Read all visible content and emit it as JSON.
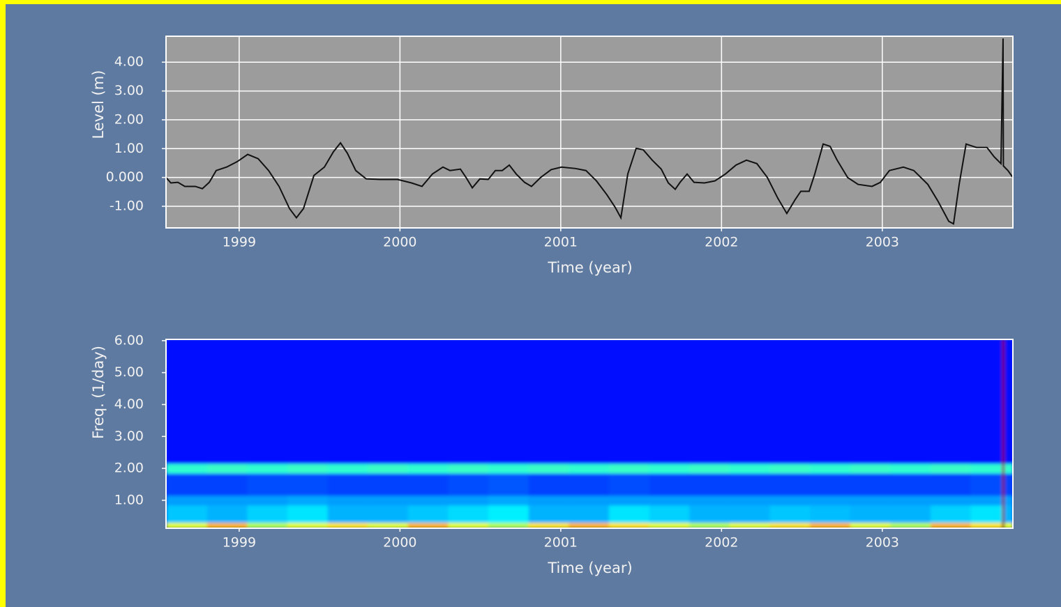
{
  "chart_data": [
    {
      "type": "line",
      "y_label": "Level (m)",
      "x_label": "Time (year)",
      "xlim": [
        1998.545,
        2003.812
      ],
      "xticks": [
        1999,
        2000,
        2001,
        2002,
        2003
      ],
      "ylim": [
        -1.75,
        4.9
      ],
      "yticks": [
        {
          "value": -1,
          "label": "-1.00"
        },
        {
          "value": 0,
          "label": "0.000"
        },
        {
          "value": 1,
          "label": "1.00"
        },
        {
          "value": 2,
          "label": "2.00"
        },
        {
          "value": 3,
          "label": "3.00"
        },
        {
          "value": 4,
          "label": "4.00"
        }
      ],
      "grid": true,
      "color": "#111111",
      "x": [
        1998.545,
        1998.575,
        1998.619,
        1998.662,
        1998.727,
        1998.771,
        1998.814,
        1998.857,
        1998.922,
        1998.988,
        1999.053,
        1999.118,
        1999.183,
        1999.248,
        1999.313,
        1999.356,
        1999.4,
        1999.465,
        1999.53,
        1999.586,
        1999.63,
        1999.673,
        1999.725,
        1999.79,
        1999.877,
        1999.985,
        2000.072,
        2000.137,
        2000.202,
        2000.267,
        2000.311,
        2000.376,
        2000.411,
        2000.45,
        2000.497,
        2000.549,
        2000.593,
        2000.636,
        2000.68,
        2000.723,
        2000.775,
        2000.818,
        2000.875,
        2000.94,
        2001.005,
        2001.092,
        2001.157,
        2001.222,
        2001.287,
        2001.339,
        2001.374,
        2001.417,
        2001.469,
        2001.513,
        2001.569,
        2001.625,
        2001.669,
        2001.712,
        2001.742,
        2001.786,
        2001.829,
        2001.894,
        2001.959,
        2002.024,
        2002.09,
        2002.155,
        2002.22,
        2002.285,
        2002.35,
        2002.406,
        2002.458,
        2002.493,
        2002.545,
        2002.58,
        2002.632,
        2002.675,
        2002.719,
        2002.784,
        2002.849,
        2002.936,
        2002.988,
        2003.044,
        2003.131,
        2003.196,
        2003.283,
        2003.348,
        2003.413,
        2003.443,
        2003.478,
        2003.521,
        2003.586,
        2003.651,
        2003.695,
        2003.738,
        2003.751,
        2003.753,
        2003.781,
        2003.812
      ],
      "values": [
        0,
        -0.19,
        -0.17,
        -0.31,
        -0.31,
        -0.39,
        -0.17,
        0.24,
        0.36,
        0.55,
        0.8,
        0.65,
        0.24,
        -0.31,
        -1.08,
        -1.4,
        -1.08,
        0.07,
        0.36,
        0.89,
        1.2,
        0.84,
        0.24,
        -0.05,
        -0.07,
        -0.07,
        -0.19,
        -0.31,
        0.12,
        0.36,
        0.24,
        0.29,
        0,
        -0.36,
        -0.05,
        -0.07,
        0.24,
        0.24,
        0.43,
        0.12,
        -0.17,
        -0.31,
        0,
        0.27,
        0.36,
        0.31,
        0.24,
        -0.12,
        -0.6,
        -1.04,
        -1.4,
        0.12,
        1.01,
        0.96,
        0.6,
        0.29,
        -0.19,
        -0.41,
        -0.17,
        0.12,
        -0.17,
        -0.19,
        -0.12,
        0.12,
        0.43,
        0.6,
        0.48,
        0,
        -0.72,
        -1.25,
        -0.77,
        -0.48,
        -0.48,
        0.12,
        1.16,
        1.08,
        0.6,
        0,
        -0.24,
        -0.31,
        -0.17,
        0.24,
        0.36,
        0.24,
        -0.24,
        -0.84,
        -1.52,
        -1.61,
        -0.24,
        1.16,
        1.04,
        1.04,
        0.72,
        0.48,
        4.82,
        0.4,
        0.24,
        0
      ]
    },
    {
      "type": "heatmap",
      "y_label": "Freq. (1/day)",
      "x_label": "Time (year)",
      "xlim": [
        1998.545,
        2003.812
      ],
      "xticks": [
        1999,
        2000,
        2001,
        2002,
        2003
      ],
      "ylim": [
        0.125,
        6.04
      ],
      "yticks": [
        {
          "value": 1,
          "label": "1.00"
        },
        {
          "value": 2,
          "label": "2.00"
        },
        {
          "value": 3,
          "label": "3.00"
        },
        {
          "value": 4,
          "label": "4.00"
        },
        {
          "value": 5,
          "label": "5.00"
        },
        {
          "value": 6,
          "label": "6.00"
        }
      ],
      "grid": false,
      "colormap": "jet",
      "x_edges": [
        1998.545,
        1998.8,
        1999.05,
        1999.3,
        1999.55,
        1999.8,
        2000.05,
        2000.3,
        2000.55,
        2000.8,
        2001.05,
        2001.3,
        2001.55,
        2001.8,
        2002.05,
        2002.3,
        2002.55,
        2002.8,
        2003.05,
        2003.3,
        2003.55,
        2003.745,
        2003.76,
        2003.812
      ],
      "y_edges": [
        0.125,
        0.3,
        0.85,
        1.15,
        1.85,
        2.15,
        6.04
      ],
      "z": [
        [
          0.6,
          0.7,
          0.55,
          0.6,
          0.65,
          0.6,
          0.7,
          0.6,
          0.55,
          0.65,
          0.7,
          0.65,
          0.6,
          0.55,
          0.6,
          0.65,
          0.7,
          0.6,
          0.55,
          0.7,
          0.65,
          1.0,
          0.6
        ],
        [
          0.32,
          0.3,
          0.33,
          0.35,
          0.3,
          0.3,
          0.32,
          0.34,
          0.36,
          0.3,
          0.3,
          0.35,
          0.33,
          0.3,
          0.3,
          0.32,
          0.31,
          0.3,
          0.3,
          0.33,
          0.35,
          1.0,
          0.3
        ],
        [
          0.28,
          0.28,
          0.28,
          0.29,
          0.28,
          0.28,
          0.28,
          0.28,
          0.29,
          0.28,
          0.28,
          0.28,
          0.28,
          0.28,
          0.28,
          0.28,
          0.28,
          0.28,
          0.28,
          0.28,
          0.28,
          1.0,
          0.28
        ],
        [
          0.19,
          0.19,
          0.2,
          0.2,
          0.19,
          0.19,
          0.19,
          0.2,
          0.21,
          0.19,
          0.19,
          0.2,
          0.19,
          0.19,
          0.19,
          0.19,
          0.19,
          0.19,
          0.19,
          0.19,
          0.2,
          1.0,
          0.19
        ],
        [
          0.42,
          0.43,
          0.42,
          0.43,
          0.42,
          0.43,
          0.42,
          0.43,
          0.42,
          0.43,
          0.42,
          0.43,
          0.42,
          0.43,
          0.42,
          0.43,
          0.42,
          0.43,
          0.42,
          0.43,
          0.42,
          1.0,
          0.42
        ],
        [
          0.14,
          0.14,
          0.14,
          0.14,
          0.14,
          0.14,
          0.14,
          0.14,
          0.14,
          0.14,
          0.14,
          0.14,
          0.14,
          0.14,
          0.14,
          0.14,
          0.14,
          0.14,
          0.14,
          0.14,
          0.14,
          1.0,
          0.14
        ]
      ]
    }
  ]
}
